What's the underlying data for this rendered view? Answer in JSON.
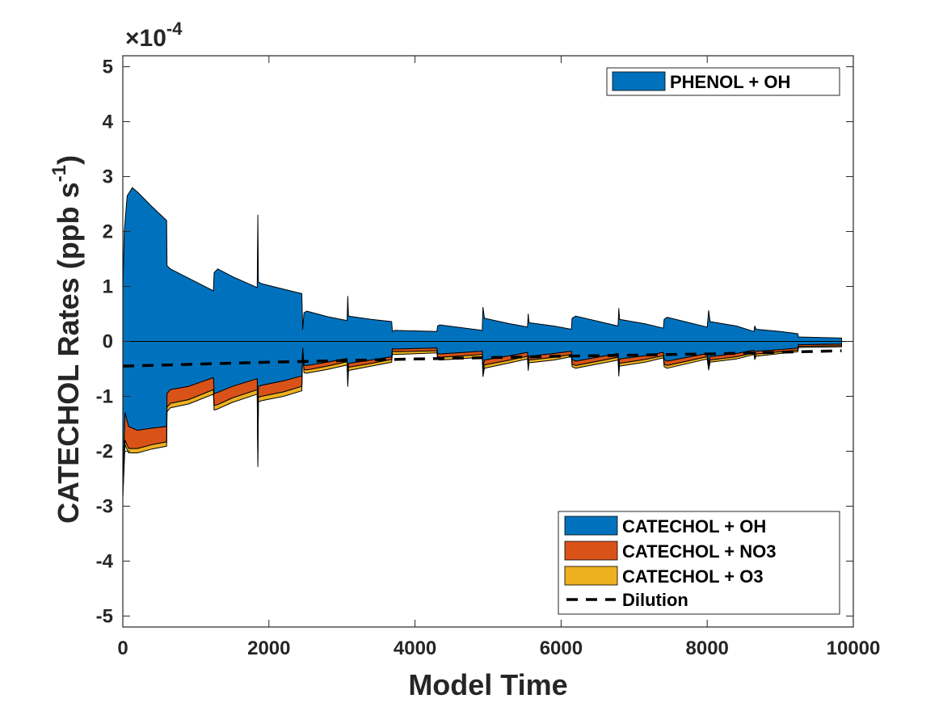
{
  "chart_data": {
    "type": "area",
    "title": "",
    "xlabel": "Model Time",
    "ylabel": "CATECHOL Rates (ppb s",
    "ylabel_sup": "-1",
    "ylabel_close": ")",
    "exponent_multiplier": "×10",
    "exponent_power": "-4",
    "xlim": [
      0,
      10000
    ],
    "ylim": [
      -5.2,
      5.2
    ],
    "xticks": [
      0,
      2000,
      4000,
      6000,
      8000,
      10000
    ],
    "xtick_labels": [
      "0",
      "2000",
      "4000",
      "6000",
      "8000",
      "10000"
    ],
    "yticks": [
      5,
      4,
      3,
      2,
      1,
      0,
      -1,
      -2,
      -3,
      -4,
      -5
    ],
    "ytick_labels": [
      "5",
      "4",
      "3",
      "2",
      "1",
      "0",
      "-1",
      "-2",
      "-3",
      "-4",
      "-5"
    ],
    "unit_scale": "1e-4 ppb s^-1",
    "production_series": [
      {
        "name": "PHENOL + OH",
        "color": "#0072BD",
        "points": [
          [
            0,
            0.9
          ],
          [
            20,
            2.0
          ],
          [
            60,
            2.65
          ],
          [
            130,
            2.8
          ],
          [
            200,
            2.72
          ],
          [
            400,
            2.45
          ],
          [
            600,
            2.2
          ],
          [
            605,
            1.38
          ],
          [
            650,
            1.32
          ],
          [
            900,
            1.15
          ],
          [
            1240,
            0.92
          ],
          [
            1250,
            1.25
          ],
          [
            1300,
            1.32
          ],
          [
            1500,
            1.18
          ],
          [
            1840,
            0.98
          ],
          [
            1848,
            2.3
          ],
          [
            1856,
            1.08
          ],
          [
            1900,
            1.05
          ],
          [
            2200,
            0.95
          ],
          [
            2450,
            0.87
          ],
          [
            2462,
            0.22
          ],
          [
            2480,
            0.52
          ],
          [
            2520,
            0.55
          ],
          [
            2800,
            0.45
          ],
          [
            3070,
            0.38
          ],
          [
            3080,
            0.82
          ],
          [
            3090,
            0.46
          ],
          [
            3400,
            0.4
          ],
          [
            3680,
            0.36
          ],
          [
            3690,
            0.18
          ],
          [
            3720,
            0.2
          ],
          [
            4300,
            0.18
          ],
          [
            4310,
            0.28
          ],
          [
            4340,
            0.3
          ],
          [
            4920,
            0.2
          ],
          [
            4930,
            0.62
          ],
          [
            4950,
            0.42
          ],
          [
            5300,
            0.32
          ],
          [
            5540,
            0.26
          ],
          [
            5550,
            0.5
          ],
          [
            5560,
            0.34
          ],
          [
            5900,
            0.28
          ],
          [
            6140,
            0.22
          ],
          [
            6150,
            0.42
          ],
          [
            6200,
            0.46
          ],
          [
            6780,
            0.28
          ],
          [
            6790,
            0.6
          ],
          [
            6800,
            0.4
          ],
          [
            7150,
            0.32
          ],
          [
            7400,
            0.24
          ],
          [
            7410,
            0.4
          ],
          [
            7450,
            0.44
          ],
          [
            8000,
            0.26
          ],
          [
            8020,
            0.56
          ],
          [
            8040,
            0.36
          ],
          [
            8400,
            0.28
          ],
          [
            8640,
            0.18
          ],
          [
            8650,
            0.28
          ],
          [
            8670,
            0.22
          ],
          [
            9000,
            0.18
          ],
          [
            9240,
            0.14
          ],
          [
            9250,
            0.08
          ],
          [
            9280,
            0.08
          ],
          [
            9840,
            0.06
          ]
        ]
      }
    ],
    "loss_series": [
      {
        "name": "CATECHOL + OH",
        "color": "#0072BD",
        "points": [
          [
            0,
            -2.6
          ],
          [
            30,
            -1.3
          ],
          [
            80,
            -1.55
          ],
          [
            200,
            -1.62
          ],
          [
            400,
            -1.58
          ],
          [
            600,
            -1.55
          ],
          [
            605,
            -0.95
          ],
          [
            650,
            -0.88
          ],
          [
            900,
            -0.82
          ],
          [
            1240,
            -0.66
          ],
          [
            1250,
            -0.95
          ],
          [
            1300,
            -0.93
          ],
          [
            1500,
            -0.82
          ],
          [
            1840,
            -0.68
          ],
          [
            1848,
            -2.0
          ],
          [
            1856,
            -0.82
          ],
          [
            1900,
            -0.8
          ],
          [
            2200,
            -0.72
          ],
          [
            2450,
            -0.63
          ],
          [
            2462,
            -0.12
          ],
          [
            2480,
            -0.43
          ],
          [
            2520,
            -0.44
          ],
          [
            2800,
            -0.38
          ],
          [
            3070,
            -0.31
          ],
          [
            3080,
            -0.68
          ],
          [
            3090,
            -0.4
          ],
          [
            3400,
            -0.34
          ],
          [
            3680,
            -0.28
          ],
          [
            3690,
            -0.13
          ],
          [
            3720,
            -0.14
          ],
          [
            4300,
            -0.12
          ],
          [
            4310,
            -0.22
          ],
          [
            4340,
            -0.23
          ],
          [
            4920,
            -0.18
          ],
          [
            4930,
            -0.48
          ],
          [
            4950,
            -0.34
          ],
          [
            5300,
            -0.26
          ],
          [
            5540,
            -0.2
          ],
          [
            5550,
            -0.4
          ],
          [
            5560,
            -0.27
          ],
          [
            5900,
            -0.22
          ],
          [
            6140,
            -0.18
          ],
          [
            6150,
            -0.33
          ],
          [
            6200,
            -0.36
          ],
          [
            6780,
            -0.22
          ],
          [
            6790,
            -0.48
          ],
          [
            6800,
            -0.32
          ],
          [
            7150,
            -0.26
          ],
          [
            7400,
            -0.2
          ],
          [
            7410,
            -0.33
          ],
          [
            7450,
            -0.36
          ],
          [
            8000,
            -0.22
          ],
          [
            8020,
            -0.4
          ],
          [
            8040,
            -0.28
          ],
          [
            8400,
            -0.22
          ],
          [
            8640,
            -0.16
          ],
          [
            8650,
            -0.24
          ],
          [
            8670,
            -0.18
          ],
          [
            9000,
            -0.15
          ],
          [
            9240,
            -0.12
          ],
          [
            9250,
            -0.06
          ],
          [
            9280,
            -0.06
          ],
          [
            9840,
            -0.05
          ]
        ]
      },
      {
        "name": "CATECHOL + NO3",
        "color": "#D95319",
        "points": [
          [
            0,
            -0.2
          ],
          [
            30,
            -0.5
          ],
          [
            80,
            -0.4
          ],
          [
            200,
            -0.33
          ],
          [
            400,
            -0.3
          ],
          [
            600,
            -0.28
          ],
          [
            605,
            -0.25
          ],
          [
            650,
            -0.25
          ],
          [
            900,
            -0.24
          ],
          [
            1240,
            -0.22
          ],
          [
            1250,
            -0.22
          ],
          [
            1300,
            -0.22
          ],
          [
            1500,
            -0.21
          ],
          [
            1840,
            -0.2
          ],
          [
            1848,
            -0.2
          ],
          [
            1856,
            -0.2
          ],
          [
            1900,
            -0.2
          ],
          [
            2200,
            -0.2
          ],
          [
            2450,
            -0.19
          ],
          [
            2462,
            -0.04
          ],
          [
            2480,
            -0.08
          ],
          [
            2520,
            -0.08
          ],
          [
            2800,
            -0.07
          ],
          [
            3070,
            -0.06
          ],
          [
            3080,
            -0.08
          ],
          [
            3090,
            -0.07
          ],
          [
            3400,
            -0.06
          ],
          [
            3680,
            -0.05
          ],
          [
            3690,
            -0.05
          ],
          [
            3720,
            -0.05
          ],
          [
            4300,
            -0.05
          ],
          [
            4310,
            -0.06
          ],
          [
            4340,
            -0.06
          ],
          [
            4920,
            -0.06
          ],
          [
            4930,
            -0.1
          ],
          [
            4950,
            -0.09
          ],
          [
            5300,
            -0.08
          ],
          [
            5540,
            -0.07
          ],
          [
            5550,
            -0.08
          ],
          [
            5560,
            -0.07
          ],
          [
            5900,
            -0.07
          ],
          [
            6140,
            -0.06
          ],
          [
            6150,
            -0.08
          ],
          [
            6200,
            -0.08
          ],
          [
            6780,
            -0.07
          ],
          [
            6790,
            -0.09
          ],
          [
            6800,
            -0.08
          ],
          [
            7150,
            -0.07
          ],
          [
            7400,
            -0.06
          ],
          [
            7410,
            -0.08
          ],
          [
            7450,
            -0.08
          ],
          [
            8000,
            -0.06
          ],
          [
            8020,
            -0.07
          ],
          [
            8040,
            -0.06
          ],
          [
            8400,
            -0.06
          ],
          [
            8640,
            -0.05
          ],
          [
            8650,
            -0.05
          ],
          [
            8670,
            -0.05
          ],
          [
            9000,
            -0.04
          ],
          [
            9240,
            -0.04
          ],
          [
            9250,
            -0.03
          ],
          [
            9280,
            -0.03
          ],
          [
            9840,
            -0.03
          ]
        ]
      },
      {
        "name": "CATECHOL + O3",
        "color": "#EDB120",
        "points": [
          [
            0,
            -0.06
          ],
          [
            30,
            -0.08
          ],
          [
            80,
            -0.08
          ],
          [
            200,
            -0.08
          ],
          [
            400,
            -0.08
          ],
          [
            600,
            -0.08
          ],
          [
            605,
            -0.08
          ],
          [
            650,
            -0.08
          ],
          [
            900,
            -0.08
          ],
          [
            1240,
            -0.08
          ],
          [
            1250,
            -0.08
          ],
          [
            1300,
            -0.08
          ],
          [
            1500,
            -0.08
          ],
          [
            1840,
            -0.08
          ],
          [
            1848,
            -0.08
          ],
          [
            1856,
            -0.08
          ],
          [
            1900,
            -0.08
          ],
          [
            2200,
            -0.08
          ],
          [
            2450,
            -0.08
          ],
          [
            2462,
            -0.04
          ],
          [
            2480,
            -0.06
          ],
          [
            2520,
            -0.06
          ],
          [
            2800,
            -0.06
          ],
          [
            3070,
            -0.06
          ],
          [
            3080,
            -0.06
          ],
          [
            3090,
            -0.06
          ],
          [
            3400,
            -0.05
          ],
          [
            3680,
            -0.05
          ],
          [
            3690,
            -0.05
          ],
          [
            3720,
            -0.05
          ],
          [
            4300,
            -0.04
          ],
          [
            4310,
            -0.05
          ],
          [
            4340,
            -0.05
          ],
          [
            4920,
            -0.05
          ],
          [
            4930,
            -0.06
          ],
          [
            4950,
            -0.06
          ],
          [
            5300,
            -0.05
          ],
          [
            5540,
            -0.05
          ],
          [
            5550,
            -0.05
          ],
          [
            5560,
            -0.05
          ],
          [
            5900,
            -0.05
          ],
          [
            6140,
            -0.04
          ],
          [
            6150,
            -0.05
          ],
          [
            6200,
            -0.05
          ],
          [
            6780,
            -0.05
          ],
          [
            6790,
            -0.06
          ],
          [
            6800,
            -0.05
          ],
          [
            7150,
            -0.05
          ],
          [
            7400,
            -0.04
          ],
          [
            7410,
            -0.05
          ],
          [
            7450,
            -0.05
          ],
          [
            8000,
            -0.04
          ],
          [
            8020,
            -0.05
          ],
          [
            8040,
            -0.04
          ],
          [
            8400,
            -0.04
          ],
          [
            8640,
            -0.03
          ],
          [
            8650,
            -0.04
          ],
          [
            8670,
            -0.04
          ],
          [
            9000,
            -0.03
          ],
          [
            9240,
            -0.03
          ],
          [
            9250,
            -0.02
          ],
          [
            9280,
            -0.02
          ],
          [
            9840,
            -0.02
          ]
        ]
      }
    ],
    "dilution": {
      "name": "Dilution",
      "color": "#000000",
      "style": "dashed",
      "points": [
        [
          0,
          -0.45
        ],
        [
          2000,
          -0.38
        ],
        [
          4000,
          -0.32
        ],
        [
          6000,
          -0.27
        ],
        [
          8000,
          -0.23
        ],
        [
          9840,
          -0.17
        ]
      ]
    },
    "legend_production": {
      "location": "top-right",
      "entries": [
        "PHENOL + OH"
      ]
    },
    "legend_loss": {
      "location": "bottom-right",
      "entries": [
        "CATECHOL + OH",
        "CATECHOL + NO3",
        "CATECHOL + O3",
        "Dilution"
      ]
    }
  }
}
